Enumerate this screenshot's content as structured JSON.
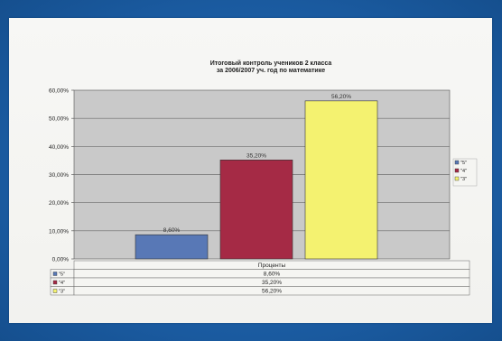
{
  "chart_data": {
    "type": "bar",
    "title_line1": "Итоговый контроль учеников 2 класса",
    "title_line2": "за 2006/2007  уч. год по математике",
    "category": "Проценты",
    "ylim": [
      0,
      60
    ],
    "yticks": [
      "0,00%",
      "10,00%",
      "20,00%",
      "30,00%",
      "40,00%",
      "50,00%",
      "60,00%"
    ],
    "series": [
      {
        "name": "\"5\"",
        "value": 8.6,
        "label": "8,60%",
        "color": "#5878b6"
      },
      {
        "name": "\"4\"",
        "value": 35.2,
        "label": "35,20%",
        "color": "#a52a45"
      },
      {
        "name": "\"3\"",
        "value": 56.2,
        "label": "56,20%",
        "color": "#f4f270"
      }
    ],
    "legend_position": "right",
    "grid": true,
    "plot_background": "#c9c9c9"
  }
}
